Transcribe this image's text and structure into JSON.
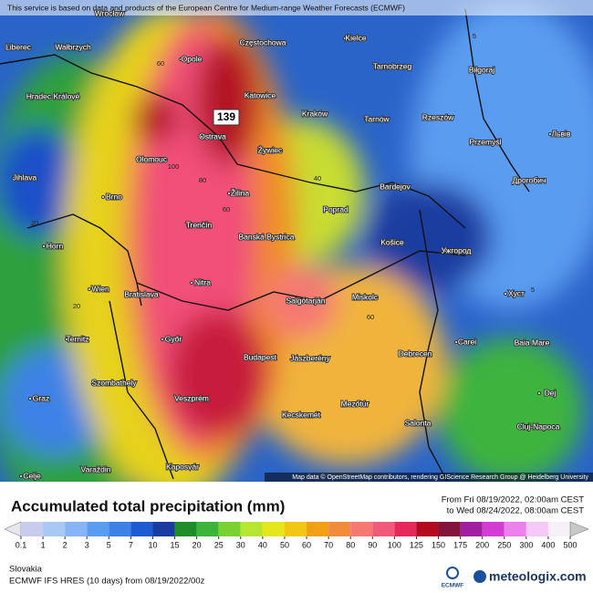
{
  "header": {
    "notice": "This service is based on data and products of the European Centre for Medium-range Weather Forecasts (ECMWF)"
  },
  "map": {
    "attribution": "Map data © OpenStreetMap contributors, rendering GIScience Research Group @ Heidelberg University",
    "max_label": "139",
    "cities": [
      "Wrocław",
      "Częstochowa",
      "Kielce",
      "Liberec",
      "Wałbrzych",
      "Opole",
      "Tarnobrzeg",
      "Biłgoraj",
      "Hradec Králové",
      "Katowice",
      "Kraków",
      "Tarnów",
      "Rzeszów",
      "Ostrava",
      "Przemyśl",
      "Львів",
      "Jihlava",
      "Olomouc",
      "Żywiec",
      "Bardejov",
      "Brno",
      "Žilina",
      "Дрогобич",
      "Poprad",
      "Trenčín",
      "Banská Bystrica",
      "Košice",
      "Ужгород",
      "Horn",
      "Wien",
      "Bratislava",
      "Nitra",
      "Salgótarján",
      "Miskolc",
      "Хуст",
      "Ternitz",
      "Győr",
      "Budapest",
      "Jászberény",
      "Carei",
      "Baia Mare",
      "Debrecen",
      "Szombathely",
      "Veszprém",
      "Kecskemét",
      "Mezőtúr",
      "Graz",
      "Dej",
      "Salonta",
      "Cluj-Napoca",
      "Kaposvár",
      "Varaždin",
      "Celje"
    ],
    "contour_labels": [
      "60",
      "100",
      "80",
      "60",
      "40",
      "20",
      "20",
      "60",
      "5",
      "5"
    ]
  },
  "legend": {
    "title": "Accumulated total precipitation (mm)",
    "period": [
      "From Fri 08/19/2022, 02:00am CEST",
      "to Wed 08/24/2022, 08:00am CEST"
    ],
    "ticks": [
      0.1,
      1,
      2,
      3,
      5,
      7,
      10,
      15,
      20,
      25,
      30,
      40,
      50,
      60,
      70,
      80,
      90,
      100,
      125,
      150,
      175,
      200,
      250,
      300,
      400,
      500
    ],
    "colors": [
      "#e6e6f0",
      "#c8cdf0",
      "#a8c8f5",
      "#86b4f5",
      "#5a9cf0",
      "#3c82e6",
      "#1e5ad2",
      "#1a3ca0",
      "#1e8c28",
      "#3cb43c",
      "#78d232",
      "#b4e632",
      "#e6e61e",
      "#f0c814",
      "#f0a014",
      "#f08c3c",
      "#f57873",
      "#f05a78",
      "#e6285a",
      "#b40a1e",
      "#82143c",
      "#a01ea0",
      "#d23cd2",
      "#eb82eb",
      "#f5c8f5",
      "#f8f0f8",
      "#c8c8c8"
    ]
  },
  "footer": {
    "region": "Slovakia",
    "model": "ECMWF IFS HRES (10 days) from 08/19/2022/00z",
    "ecmwf": "ECMWF",
    "brand": "meteologix.com"
  }
}
